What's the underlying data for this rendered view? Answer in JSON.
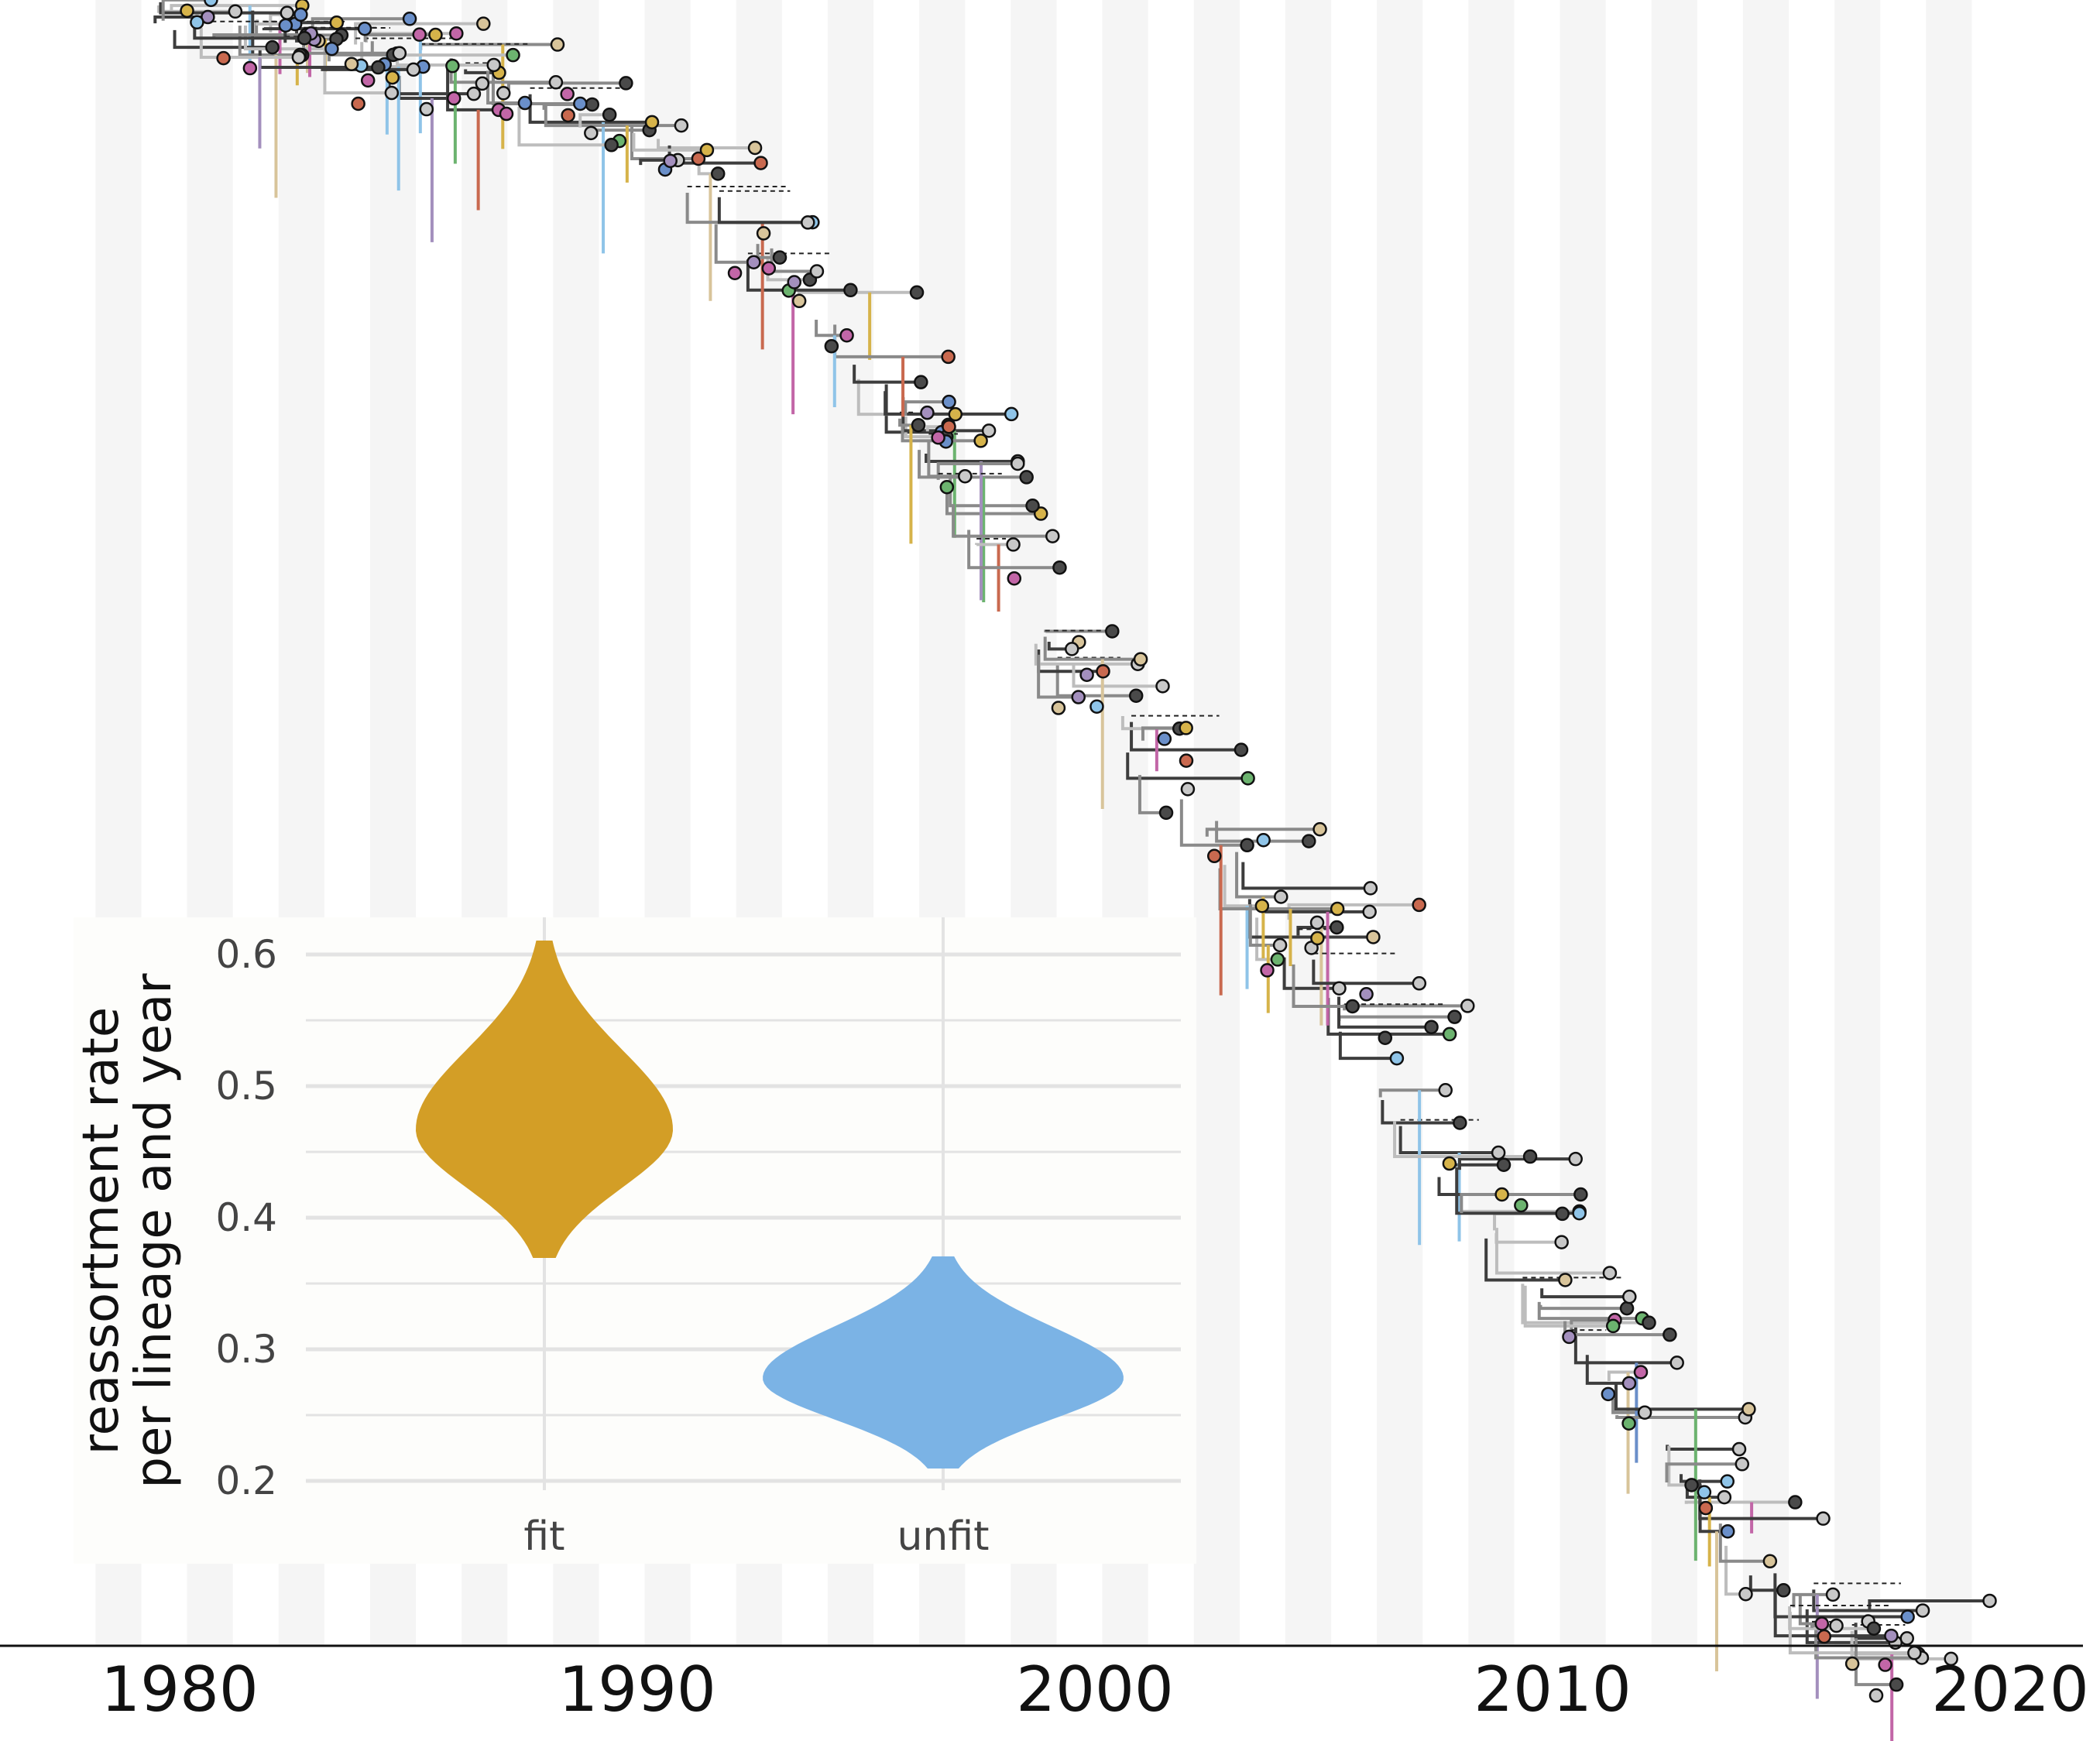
{
  "chart_data": [
    {
      "type": "tree",
      "x": [
        1980,
        1990,
        2000,
        2010,
        2020
      ],
      "xlim": [
        1979,
        2020.5
      ],
      "grid": "alternating vertical year bands",
      "colors": {
        "band": "#f5f5f5",
        "branch_light": "#bdbdbd",
        "branch_mid": "#8a8a8a",
        "branch_dark": "#3d3d3d",
        "tip_light": "#c8c8c8",
        "tip_dark": "#4a4a4a",
        "segments": [
          "#c266a7",
          "#6a8fc9",
          "#6cb36f",
          "#d6b34a",
          "#c9694f",
          "#8fc4e8",
          "#a38fbd",
          "#d8c49a"
        ]
      }
    },
    {
      "type": "violin",
      "categories": [
        "fit",
        "unfit"
      ],
      "ylabel": [
        "reassortment rate",
        "per lineage and year"
      ],
      "yticks": [
        0.2,
        0.3,
        0.4,
        0.5,
        0.6
      ],
      "ylim": [
        0.19,
        0.635
      ],
      "series": [
        {
          "color": "#d39e26",
          "min": 0.37,
          "max": 0.61,
          "peak": 0.467
        },
        {
          "color": "#7bb3e5",
          "min": 0.21,
          "max": 0.37,
          "peak": 0.278
        }
      ],
      "grid": true
    }
  ]
}
